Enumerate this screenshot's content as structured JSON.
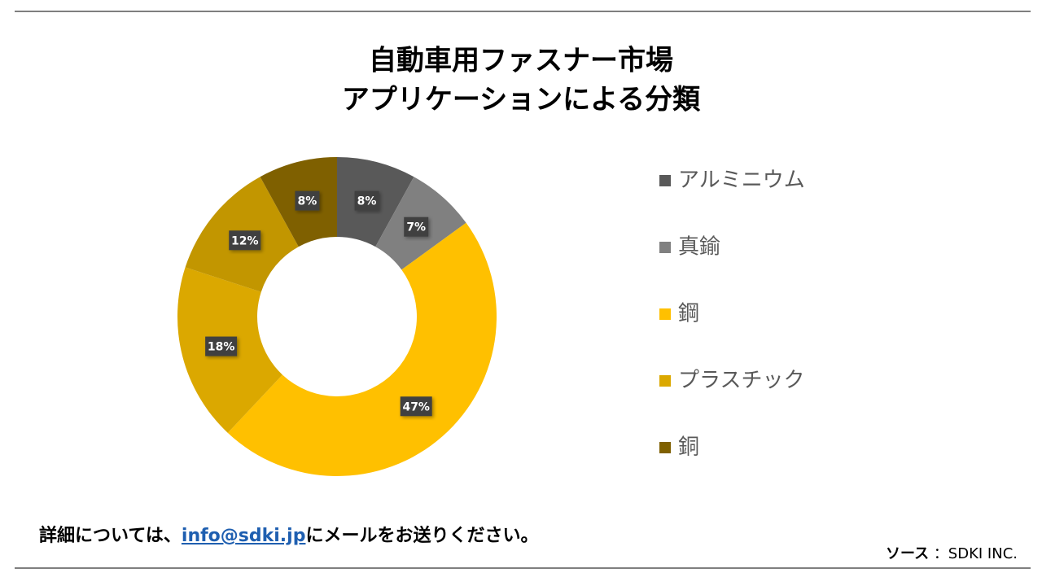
{
  "chart_data": {
    "type": "donut",
    "title_lines": [
      "自動車用ファスナー市場",
      "アプリケーションによる分類"
    ],
    "categories": [
      "アルミニウム",
      "真鍮",
      "鋼",
      "プラスチック",
      null,
      "銅"
    ],
    "values": [
      8,
      7,
      47,
      18,
      12,
      8
    ],
    "value_labels": [
      "8%",
      "7%",
      "47%",
      "18%",
      "12%",
      "8%"
    ],
    "colors": [
      "#595959",
      "#808080",
      "#FFC000",
      "#DBA800",
      "#C29600",
      "#7F6000"
    ],
    "legend": "right"
  },
  "footer": {
    "note_before": "詳細については、",
    "link": "info@sdki.jp",
    "note_after": "にメールをお送りください。",
    "source_label": "ソース",
    "source_value": "：SDKI INC."
  }
}
